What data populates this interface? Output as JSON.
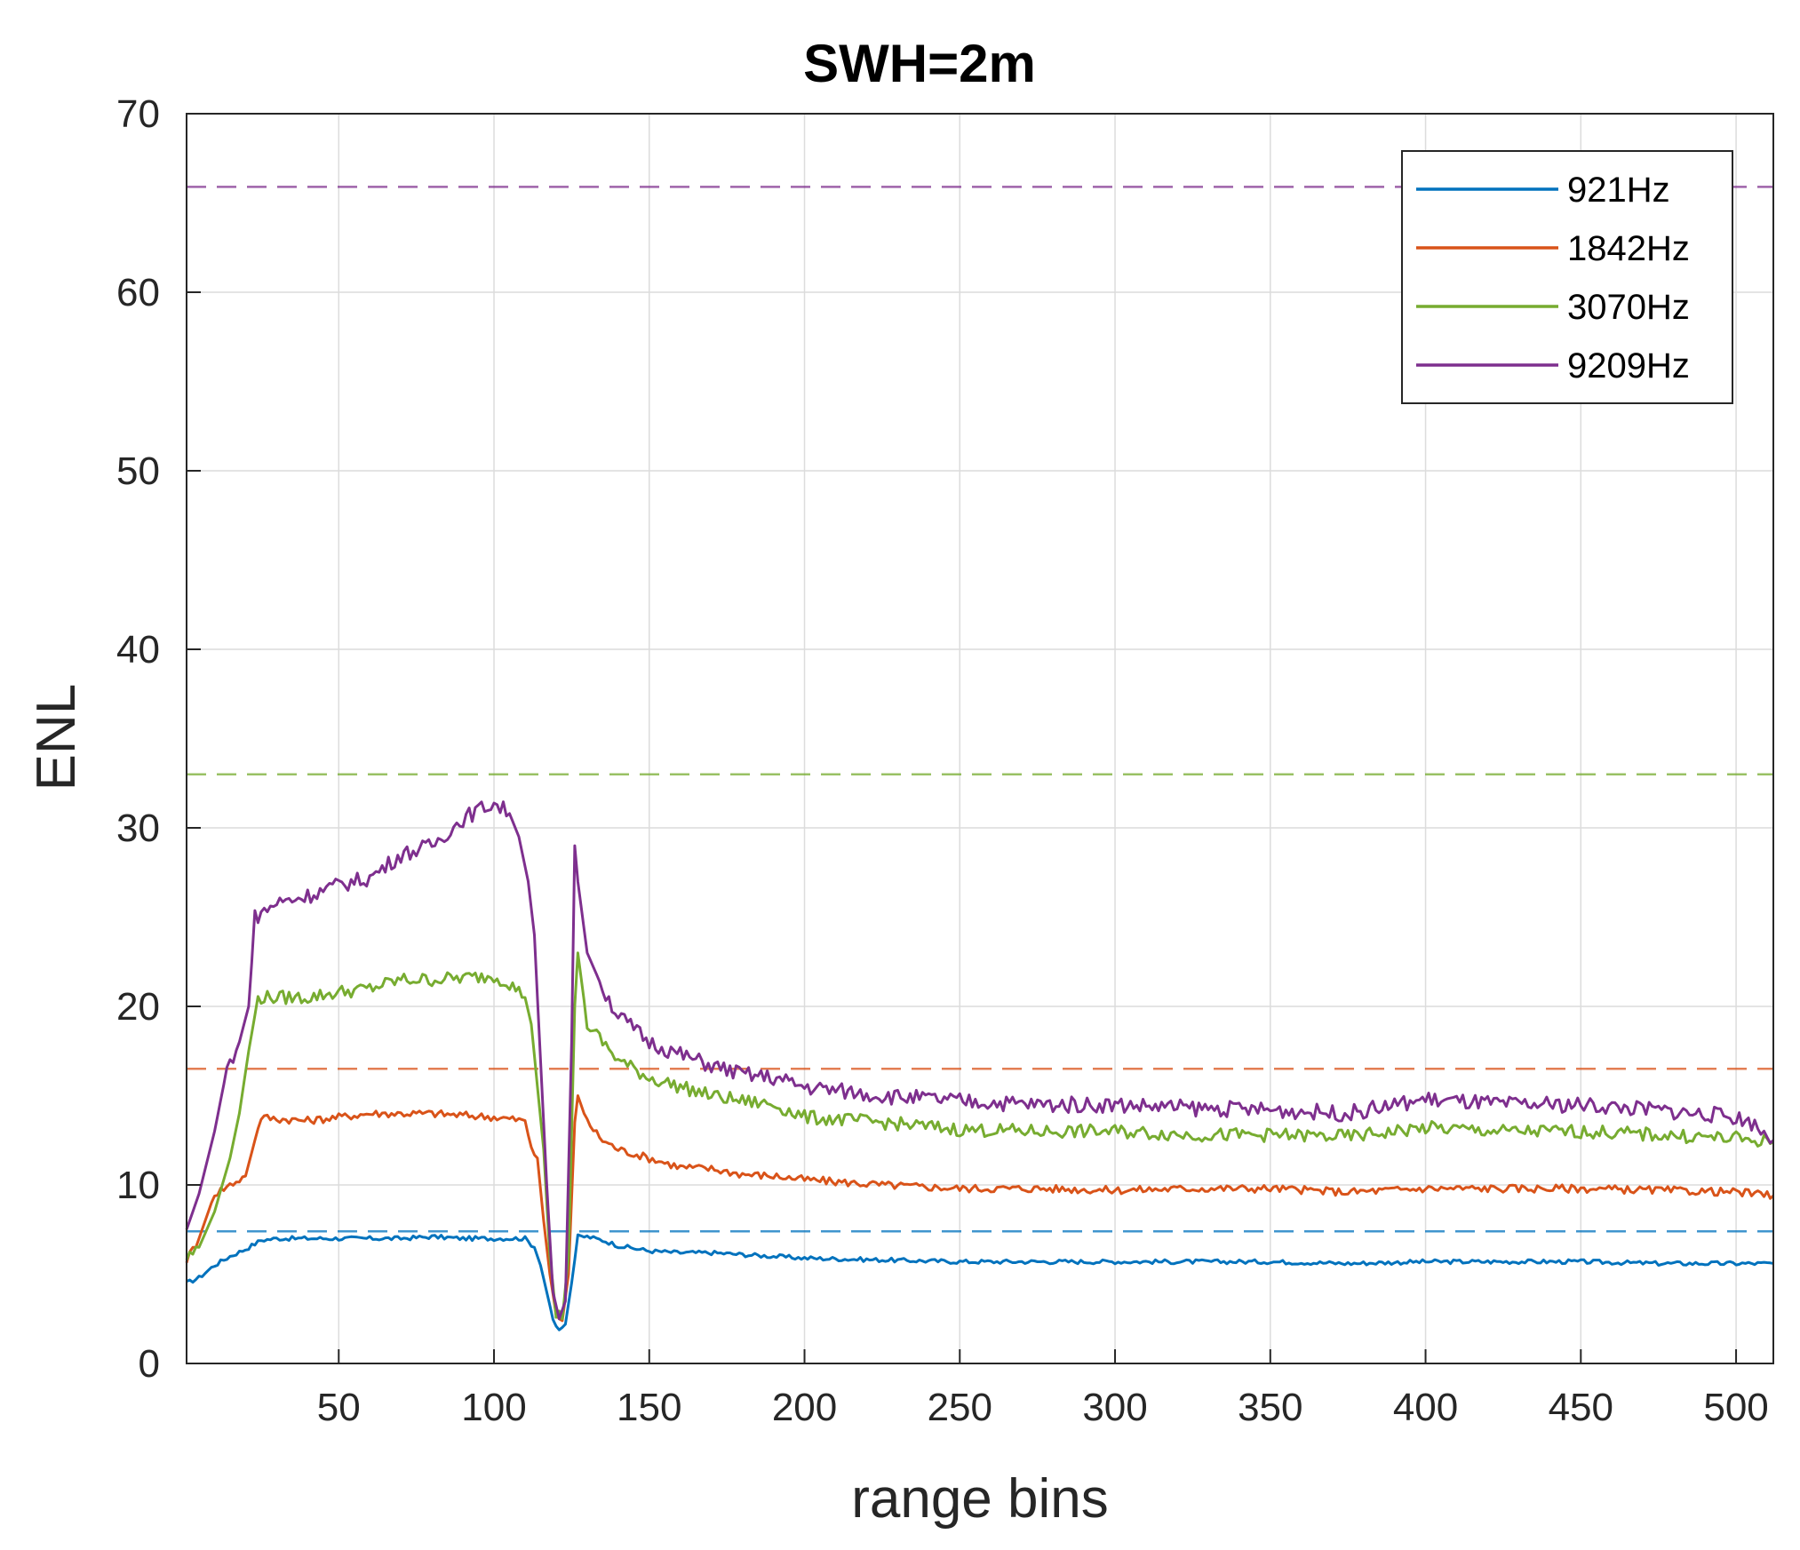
{
  "chart_data": {
    "type": "line",
    "title": "SWH=2m",
    "xlabel": "range bins",
    "ylabel": "ENL",
    "xlim": [
      1,
      512
    ],
    "ylim": [
      0,
      70
    ],
    "xticks": [
      50,
      100,
      150,
      200,
      250,
      300,
      350,
      400,
      450,
      500
    ],
    "yticks": [
      0,
      10,
      20,
      30,
      40,
      50,
      60,
      70
    ],
    "grid": true,
    "legend_position": "top-right",
    "series": [
      {
        "name": "921Hz",
        "color": "#0072BD",
        "style": "solid",
        "points": [
          [
            1,
            4.5
          ],
          [
            5,
            4.8
          ],
          [
            10,
            5.5
          ],
          [
            15,
            6.0
          ],
          [
            20,
            6.4
          ],
          [
            25,
            6.9
          ],
          [
            30,
            7.0
          ],
          [
            40,
            7.0
          ],
          [
            50,
            7.0
          ],
          [
            60,
            7.0
          ],
          [
            70,
            7.0
          ],
          [
            80,
            7.1
          ],
          [
            90,
            7.0
          ],
          [
            100,
            7.0
          ],
          [
            105,
            7.0
          ],
          [
            110,
            7.0
          ],
          [
            113,
            6.5
          ],
          [
            115,
            5.5
          ],
          [
            117,
            4.0
          ],
          [
            119,
            2.5
          ],
          [
            121,
            1.9
          ],
          [
            123,
            2.2
          ],
          [
            125,
            4.5
          ],
          [
            127,
            7.1
          ],
          [
            130,
            7.1
          ],
          [
            135,
            6.9
          ],
          [
            140,
            6.6
          ],
          [
            150,
            6.3
          ],
          [
            160,
            6.2
          ],
          [
            170,
            6.2
          ],
          [
            180,
            6.1
          ],
          [
            190,
            6.0
          ],
          [
            200,
            5.9
          ],
          [
            225,
            5.8
          ],
          [
            250,
            5.7
          ],
          [
            275,
            5.7
          ],
          [
            300,
            5.7
          ],
          [
            325,
            5.7
          ],
          [
            350,
            5.7
          ],
          [
            375,
            5.6
          ],
          [
            400,
            5.7
          ],
          [
            425,
            5.7
          ],
          [
            450,
            5.7
          ],
          [
            475,
            5.6
          ],
          [
            500,
            5.6
          ],
          [
            512,
            5.6
          ]
        ]
      },
      {
        "name": "1842Hz",
        "color": "#D95319",
        "style": "solid",
        "points": [
          [
            1,
            5.8
          ],
          [
            5,
            7.0
          ],
          [
            10,
            9.5
          ],
          [
            15,
            10.0
          ],
          [
            20,
            10.5
          ],
          [
            23,
            12.5
          ],
          [
            25,
            13.8
          ],
          [
            30,
            13.7
          ],
          [
            40,
            13.6
          ],
          [
            50,
            13.8
          ],
          [
            60,
            14.0
          ],
          [
            70,
            14.0
          ],
          [
            80,
            14.0
          ],
          [
            90,
            13.9
          ],
          [
            100,
            13.8
          ],
          [
            105,
            13.7
          ],
          [
            110,
            13.6
          ],
          [
            112,
            12.0
          ],
          [
            114,
            11.5
          ],
          [
            116,
            8.0
          ],
          [
            118,
            5.0
          ],
          [
            120,
            2.8
          ],
          [
            122,
            2.4
          ],
          [
            124,
            5.0
          ],
          [
            126,
            13.5
          ],
          [
            127,
            15.0
          ],
          [
            130,
            13.5
          ],
          [
            135,
            12.5
          ],
          [
            140,
            12.0
          ],
          [
            150,
            11.5
          ],
          [
            160,
            11.0
          ],
          [
            170,
            10.9
          ],
          [
            180,
            10.6
          ],
          [
            190,
            10.5
          ],
          [
            200,
            10.3
          ],
          [
            225,
            10.0
          ],
          [
            250,
            9.8
          ],
          [
            275,
            9.8
          ],
          [
            300,
            9.7
          ],
          [
            325,
            9.8
          ],
          [
            350,
            9.8
          ],
          [
            375,
            9.6
          ],
          [
            400,
            9.8
          ],
          [
            425,
            9.8
          ],
          [
            450,
            9.8
          ],
          [
            475,
            9.7
          ],
          [
            500,
            9.6
          ],
          [
            512,
            9.4
          ]
        ]
      },
      {
        "name": "3070Hz",
        "color": "#77AC30",
        "style": "solid",
        "points": [
          [
            1,
            5.9
          ],
          [
            5,
            6.5
          ],
          [
            10,
            8.5
          ],
          [
            15,
            11.5
          ],
          [
            18,
            14.0
          ],
          [
            21,
            17.5
          ],
          [
            24,
            20.5
          ],
          [
            30,
            20.5
          ],
          [
            40,
            20.5
          ],
          [
            50,
            20.8
          ],
          [
            60,
            21.0
          ],
          [
            70,
            21.5
          ],
          [
            80,
            21.5
          ],
          [
            90,
            21.6
          ],
          [
            100,
            21.7
          ],
          [
            105,
            21.3
          ],
          [
            110,
            20.5
          ],
          [
            112,
            19.0
          ],
          [
            114,
            15.5
          ],
          [
            116,
            12.0
          ],
          [
            118,
            6.0
          ],
          [
            120,
            2.8
          ],
          [
            122,
            2.5
          ],
          [
            124,
            6.0
          ],
          [
            126,
            20.0
          ],
          [
            127,
            23.0
          ],
          [
            130,
            19.0
          ],
          [
            135,
            18.0
          ],
          [
            140,
            17.0
          ],
          [
            150,
            16.0
          ],
          [
            160,
            15.5
          ],
          [
            170,
            15.0
          ],
          [
            180,
            14.7
          ],
          [
            190,
            14.5
          ],
          [
            200,
            13.8
          ],
          [
            225,
            13.5
          ],
          [
            250,
            13.1
          ],
          [
            275,
            13.0
          ],
          [
            300,
            13.0
          ],
          [
            325,
            12.8
          ],
          [
            350,
            12.8
          ],
          [
            375,
            12.7
          ],
          [
            400,
            13.2
          ],
          [
            425,
            13.0
          ],
          [
            450,
            13.0
          ],
          [
            475,
            12.8
          ],
          [
            500,
            12.6
          ],
          [
            512,
            12.4
          ]
        ]
      },
      {
        "name": "9209Hz",
        "color": "#7E2F8E",
        "style": "solid",
        "points": [
          [
            1,
            7.5
          ],
          [
            5,
            9.5
          ],
          [
            10,
            13.0
          ],
          [
            14,
            16.5
          ],
          [
            18,
            18.0
          ],
          [
            21,
            20.0
          ],
          [
            23,
            25.0
          ],
          [
            30,
            25.8
          ],
          [
            40,
            26.2
          ],
          [
            50,
            26.8
          ],
          [
            60,
            27.2
          ],
          [
            70,
            28.5
          ],
          [
            80,
            29.0
          ],
          [
            90,
            30.5
          ],
          [
            95,
            31.0
          ],
          [
            100,
            31.4
          ],
          [
            105,
            30.8
          ],
          [
            108,
            29.5
          ],
          [
            111,
            27.0
          ],
          [
            113,
            24.0
          ],
          [
            115,
            17.0
          ],
          [
            117,
            10.0
          ],
          [
            119,
            4.0
          ],
          [
            121,
            2.5
          ],
          [
            123,
            3.5
          ],
          [
            125,
            18.0
          ],
          [
            126,
            29.0
          ],
          [
            127,
            27.0
          ],
          [
            130,
            23.0
          ],
          [
            135,
            21.0
          ],
          [
            140,
            19.5
          ],
          [
            150,
            18.0
          ],
          [
            160,
            17.3
          ],
          [
            170,
            16.7
          ],
          [
            180,
            16.2
          ],
          [
            190,
            16.0
          ],
          [
            200,
            15.5
          ],
          [
            225,
            15.0
          ],
          [
            250,
            14.7
          ],
          [
            275,
            14.5
          ],
          [
            300,
            14.5
          ],
          [
            325,
            14.3
          ],
          [
            350,
            14.2
          ],
          [
            375,
            14.0
          ],
          [
            400,
            14.8
          ],
          [
            425,
            14.5
          ],
          [
            450,
            14.5
          ],
          [
            475,
            14.2
          ],
          [
            500,
            13.8
          ],
          [
            505,
            13.5
          ],
          [
            512,
            12.5
          ]
        ]
      },
      {
        "name": "",
        "color": "#0072BD",
        "style": "dashed",
        "points": [
          [
            1,
            7.4
          ],
          [
            512,
            7.4
          ]
        ]
      },
      {
        "name": "",
        "color": "#D95319",
        "style": "dashed",
        "points": [
          [
            1,
            16.5
          ],
          [
            512,
            16.5
          ]
        ]
      },
      {
        "name": "",
        "color": "#77AC30",
        "style": "dashed",
        "points": [
          [
            1,
            33.0
          ],
          [
            512,
            33.0
          ]
        ]
      },
      {
        "name": "",
        "color": "#7E2F8E",
        "style": "dashed",
        "points": [
          [
            1,
            65.9
          ],
          [
            512,
            65.9
          ]
        ]
      }
    ]
  }
}
